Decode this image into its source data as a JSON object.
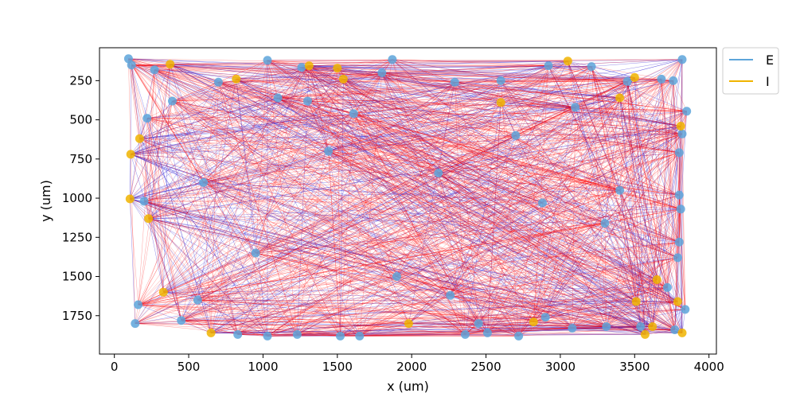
{
  "chart_data": {
    "type": "scatter",
    "title": "",
    "xlabel": "x (um)",
    "ylabel": "y (um)",
    "xlim": [
      -100,
      4050
    ],
    "ylim": [
      1995,
      40
    ],
    "y_inverted": true,
    "grid": false,
    "xticks": [
      0,
      500,
      1000,
      1500,
      2000,
      2500,
      3000,
      3500,
      4000
    ],
    "yticks": [
      250,
      500,
      750,
      1000,
      1250,
      1500,
      1750
    ],
    "legend": {
      "placement": "outside-top-right",
      "entries": [
        {
          "label": "E",
          "color": "#5da5da"
        },
        {
          "label": "I",
          "color": "#f0b400"
        }
      ]
    },
    "edge_colors": {
      "from_E": "#ff0000",
      "from_I": "#3b2bd6"
    },
    "edges": "dense all-to-many connectivity lines between neurons (not individually enumerable)",
    "series": [
      {
        "name": "E",
        "color": "#5da5da",
        "points": [
          [
            95,
            110
          ],
          [
            115,
            150
          ],
          [
            270,
            180
          ],
          [
            1030,
            120
          ],
          [
            1260,
            165
          ],
          [
            1870,
            115
          ],
          [
            2920,
            155
          ],
          [
            3210,
            160
          ],
          [
            3820,
            115
          ],
          [
            3850,
            445
          ],
          [
            220,
            490
          ],
          [
            1610,
            460
          ],
          [
            3820,
            590
          ],
          [
            3800,
            710
          ],
          [
            3800,
            980
          ],
          [
            3810,
            1070
          ],
          [
            3800,
            1280
          ],
          [
            3790,
            1380
          ],
          [
            3840,
            1710
          ],
          [
            3770,
            1840
          ],
          [
            140,
            1800
          ],
          [
            830,
            1870
          ],
          [
            1030,
            1880
          ],
          [
            1230,
            1870
          ],
          [
            1520,
            1880
          ],
          [
            1650,
            1880
          ],
          [
            2360,
            1870
          ],
          [
            2510,
            1860
          ],
          [
            2720,
            1880
          ],
          [
            3080,
            1830
          ],
          [
            1800,
            200
          ],
          [
            2290,
            260
          ],
          [
            2600,
            250
          ],
          [
            3450,
            255
          ],
          [
            3680,
            240
          ],
          [
            3760,
            250
          ],
          [
            200,
            1020
          ],
          [
            160,
            1680
          ],
          [
            1100,
            360
          ],
          [
            1300,
            380
          ],
          [
            700,
            260
          ],
          [
            450,
            1780
          ],
          [
            560,
            1650
          ],
          [
            2260,
            1620
          ],
          [
            2450,
            1800
          ],
          [
            2900,
            1760
          ],
          [
            3310,
            1820
          ],
          [
            3540,
            1820
          ],
          [
            3300,
            1160
          ],
          [
            3720,
            1570
          ],
          [
            390,
            380
          ],
          [
            1440,
            700
          ],
          [
            2180,
            840
          ],
          [
            2880,
            1030
          ],
          [
            950,
            1350
          ],
          [
            1900,
            1500
          ],
          [
            2700,
            600
          ],
          [
            3100,
            420
          ],
          [
            600,
            900
          ],
          [
            3400,
            950
          ]
        ]
      },
      {
        "name": "I",
        "color": "#f0b400",
        "points": [
          [
            375,
            145
          ],
          [
            1310,
            155
          ],
          [
            1500,
            170
          ],
          [
            3050,
            125
          ],
          [
            110,
            720
          ],
          [
            105,
            1005
          ],
          [
            3820,
            1860
          ],
          [
            3570,
            1870
          ],
          [
            650,
            1860
          ],
          [
            3500,
            230
          ],
          [
            820,
            240
          ],
          [
            1540,
            240
          ],
          [
            3810,
            540
          ],
          [
            3790,
            1660
          ],
          [
            230,
            1130
          ],
          [
            2600,
            390
          ],
          [
            3650,
            1520
          ],
          [
            1980,
            1800
          ],
          [
            2820,
            1790
          ],
          [
            3510,
            1660
          ],
          [
            3620,
            1820
          ],
          [
            3400,
            360
          ],
          [
            170,
            620
          ],
          [
            330,
            1600
          ]
        ]
      }
    ]
  }
}
